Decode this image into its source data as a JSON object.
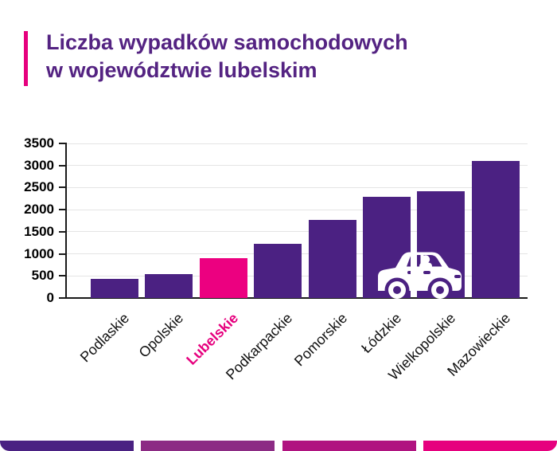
{
  "page": {
    "background": "#ffffff",
    "accent_color": "#e6007e"
  },
  "header": {
    "title_line1": "Liczba wypadków samochodowych",
    "title_line2": "w województwie lubelskim",
    "title_color": "#542382"
  },
  "chart_data": {
    "type": "bar",
    "categories": [
      "Podlaskie",
      "Opolskie",
      "Lubelskie",
      "Podkarpackie",
      "Pomorskie",
      "Łódzkie",
      "Wielkopolskie",
      "Mazowieckie"
    ],
    "values": [
      430,
      540,
      900,
      1230,
      1760,
      2300,
      2410,
      3100
    ],
    "highlight_category": "Lubelskie",
    "highlight_index": 2,
    "bar_color": "#4b2182",
    "highlight_bar_color": "#ec0080",
    "highlight_label_color": "#e6007e",
    "axis_color": "#1a1a1a",
    "gridline_color": "#e4e4e4",
    "grid": true,
    "legend": false,
    "xlabel": "",
    "ylabel": "",
    "ylim": [
      0,
      3500
    ],
    "yticks": [
      "0",
      "500",
      "1000",
      "1500",
      "2000",
      "2500",
      "3000",
      "3500"
    ]
  },
  "decor": {
    "car_icon": "car-side-view",
    "car_icon_color": "#ffffff",
    "footer_stripes": [
      "#4a2182",
      "#8c2b84",
      "#b01380",
      "#e6007e"
    ]
  }
}
